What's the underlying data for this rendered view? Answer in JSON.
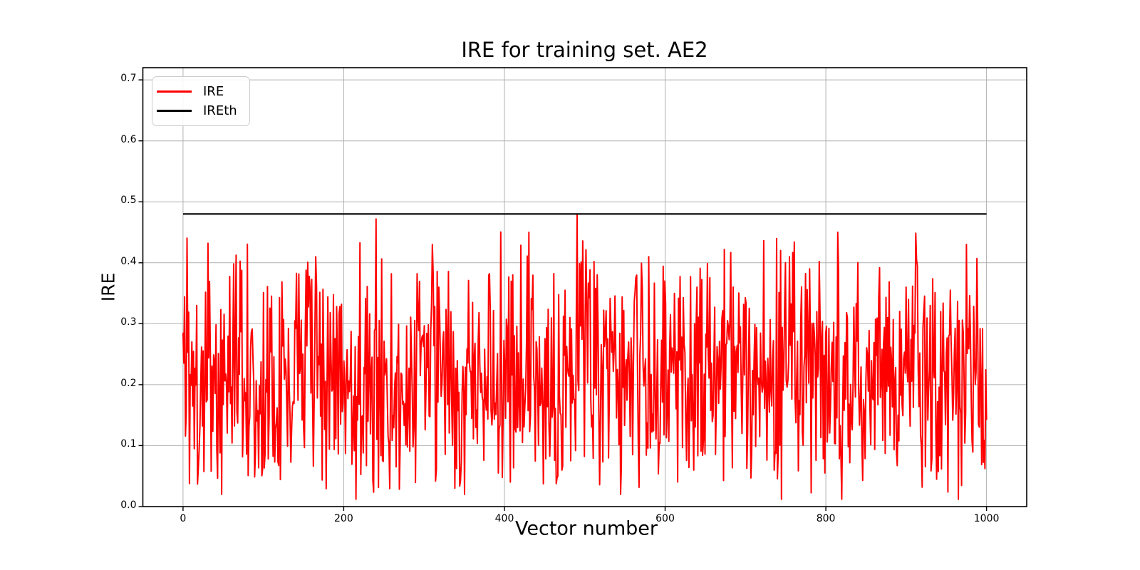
{
  "figure": {
    "background": "#ffffff"
  },
  "chart_data": {
    "type": "line",
    "title": "IRE for training set. AE2",
    "xlabel": "Vector number",
    "ylabel": "IRE",
    "xlim": [
      -50,
      1050
    ],
    "ylim": [
      0,
      0.72
    ],
    "x_ticks": [
      0,
      200,
      400,
      600,
      800,
      1000
    ],
    "y_ticks": [
      0.0,
      0.1,
      0.2,
      0.3,
      0.4,
      0.5,
      0.6,
      0.7
    ],
    "y_tick_decimals": 1,
    "grid": true,
    "grid_color": "#b0b0b0",
    "axes_color": "#000000",
    "legend": {
      "position": "upper left",
      "entries": [
        "IRE",
        "IREth"
      ]
    },
    "series": [
      {
        "name": "IRE",
        "color": "#ff0000",
        "line_width": 2,
        "kind": "noise",
        "n_points": 1000,
        "x_start": 0,
        "x_end": 1000,
        "value_min": 0.01,
        "value_max": 0.48,
        "value_median": 0.2,
        "seed": 20240715,
        "forced_points": {
          "48": 0.02,
          "165": 0.41,
          "215": 0.012,
          "240": 0.472,
          "310": 0.43,
          "318": 0.36,
          "350": 0.02,
          "380": 0.38,
          "410": 0.38,
          "430": 0.45,
          "490": 0.48,
          "545": 0.02,
          "580": 0.41,
          "600": 0.37,
          "640": 0.36,
          "685": 0.36,
          "745": 0.012,
          "750": 0.4,
          "780": 0.39,
          "815": 0.45,
          "820": 0.012,
          "900": 0.36,
          "930": 0.33,
          "965": 0.012,
          "975": 0.43
        }
      },
      {
        "name": "IREth",
        "color": "#000000",
        "line_width": 2.2,
        "kind": "constant",
        "value": 0.48,
        "x_start": 0,
        "x_end": 1000
      }
    ]
  }
}
